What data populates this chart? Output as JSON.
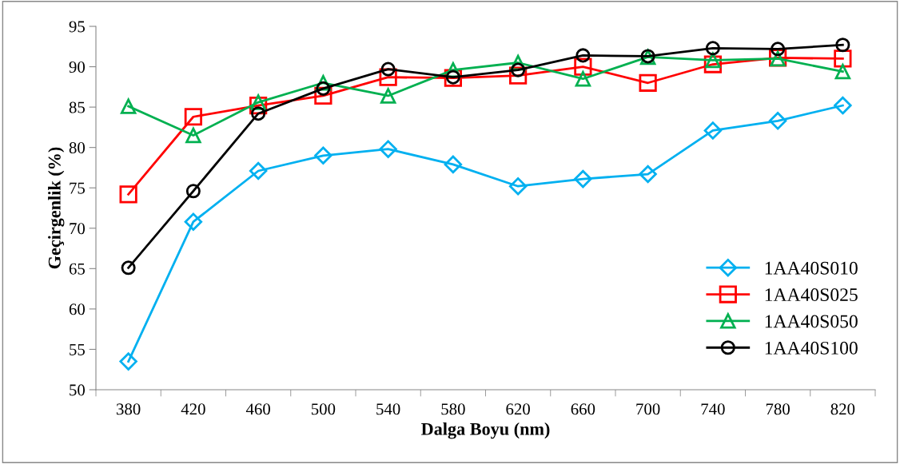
{
  "chart_data": {
    "type": "line",
    "xlabel": "Dalga Boyu (nm)",
    "ylabel": "Geçirgenlik (%)",
    "categories": [
      "380",
      "420",
      "460",
      "500",
      "540",
      "580",
      "620",
      "660",
      "700",
      "740",
      "780",
      "820"
    ],
    "series": [
      {
        "name": "1AA40S010",
        "color": "#00b0f0",
        "marker": "diamond",
        "values": [
          53.5,
          70.8,
          77.1,
          79.0,
          79.8,
          77.9,
          75.2,
          76.1,
          76.7,
          82.1,
          83.3,
          85.2
        ]
      },
      {
        "name": "1AA40S025",
        "color": "#ff0000",
        "marker": "square",
        "values": [
          74.2,
          83.8,
          85.2,
          86.4,
          88.7,
          88.6,
          88.9,
          90.0,
          88.0,
          90.3,
          91.1,
          91.0
        ]
      },
      {
        "name": "1AA40S050",
        "color": "#00b050",
        "marker": "triangle",
        "values": [
          85.1,
          81.5,
          85.6,
          88.0,
          86.4,
          89.6,
          90.5,
          88.5,
          91.2,
          90.8,
          91.0,
          89.4
        ]
      },
      {
        "name": "1AA40S100",
        "color": "#000000",
        "marker": "circle",
        "values": [
          65.1,
          74.6,
          84.2,
          87.3,
          89.7,
          88.7,
          89.6,
          91.4,
          91.3,
          92.3,
          92.2,
          92.7
        ]
      }
    ],
    "ylim": [
      50,
      95
    ],
    "yticks": [
      50,
      55,
      60,
      65,
      70,
      75,
      80,
      85,
      90,
      95
    ],
    "grid": false,
    "legend": "bottom right"
  }
}
